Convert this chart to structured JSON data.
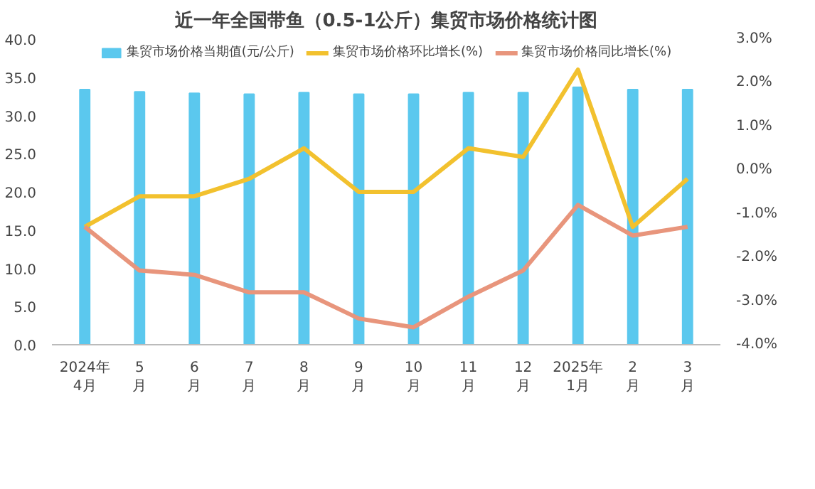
{
  "chart_data": {
    "type": "bar",
    "title": "近一年全国带鱼（0.5-1公斤）集贸市场价格统计图",
    "categories": [
      "2024年\n4月",
      "5\n月",
      "6\n月",
      "7\n月",
      "8\n月",
      "9\n月",
      "10\n月",
      "11\n月",
      "12\n月",
      "2025年\n1月",
      "2\n月",
      "3\n月"
    ],
    "series": [
      {
        "name": "集贸市场价格当期值(元/公斤)",
        "color": "#5bc8ee",
        "values": [
          33.4,
          33.1,
          32.9,
          32.8,
          33.0,
          32.8,
          32.8,
          33.0,
          33.0,
          33.7,
          33.4,
          33.4
        ]
      },
      {
        "name": "集贸市场价格环比增长(%)",
        "color": "#f2c12e",
        "type": "line",
        "axis": "y2",
        "values": [
          -1.3,
          -0.6,
          -0.6,
          -0.2,
          0.5,
          -0.5,
          -0.5,
          0.5,
          0.3,
          2.3,
          -1.3,
          -0.2
        ]
      },
      {
        "name": "集贸市场价格同比增长(%)",
        "color": "#e8957c",
        "type": "line",
        "axis": "y2",
        "values": [
          -1.3,
          -2.3,
          -2.4,
          -2.8,
          -2.8,
          -3.4,
          -3.6,
          -2.9,
          -2.3,
          -0.8,
          -1.5,
          -1.3
        ]
      }
    ],
    "ylim": [
      0,
      40
    ],
    "yticks": [
      {
        "value": 0,
        "label": "0.0"
      },
      {
        "value": 5,
        "label": "5.0"
      },
      {
        "value": 10,
        "label": "10.0"
      },
      {
        "value": 15,
        "label": "15.0"
      },
      {
        "value": 20,
        "label": "20.0"
      },
      {
        "value": 25,
        "label": "25.0"
      },
      {
        "value": 30,
        "label": "30.0"
      },
      {
        "value": 35,
        "label": "35.0"
      },
      {
        "value": 40,
        "label": "40.0"
      }
    ],
    "y2lim": [
      -4,
      3
    ],
    "y2ticks": [
      {
        "value": -4,
        "label": "-4.0%"
      },
      {
        "value": -3,
        "label": "-3.0%"
      },
      {
        "value": -2,
        "label": "-2.0%"
      },
      {
        "value": -1,
        "label": "-1.0%"
      },
      {
        "value": 0,
        "label": "0.0%"
      },
      {
        "value": 1,
        "label": "1.0%"
      },
      {
        "value": 2,
        "label": "2.0%"
      },
      {
        "value": 3,
        "label": "3.0%"
      }
    ],
    "grid": false,
    "legend": "top",
    "marker": "none",
    "line_style": "solid"
  }
}
